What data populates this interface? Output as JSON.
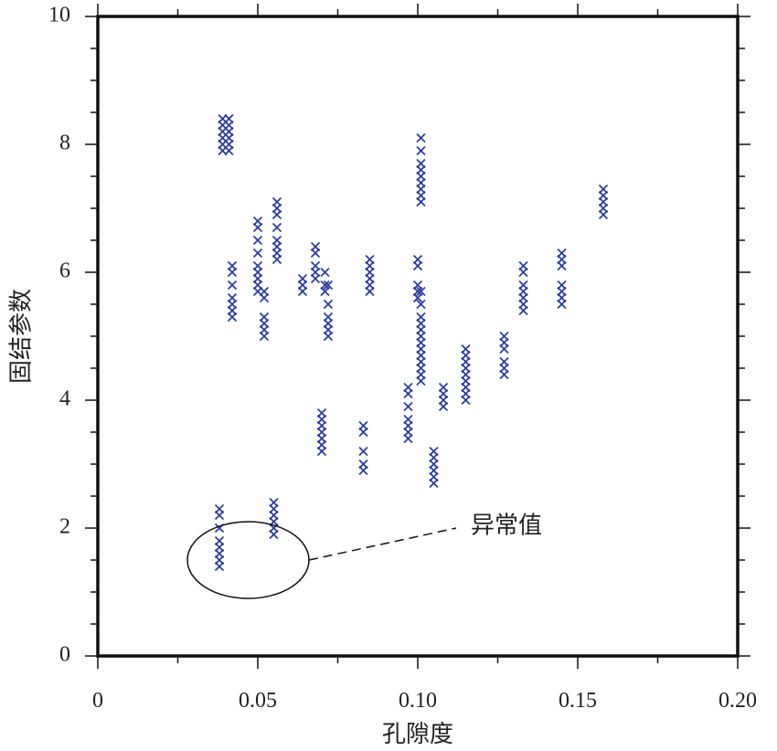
{
  "chart_data": {
    "type": "scatter",
    "title": "",
    "xlabel": "孔隙度",
    "ylabel": "固结参数",
    "xlim": [
      0,
      0.2
    ],
    "ylim": [
      0,
      10
    ],
    "x_ticks": [
      0,
      0.05,
      0.1,
      0.15,
      0.2
    ],
    "x_tick_labels": [
      "0",
      "0.05",
      "0.10",
      "0.15",
      "0.20"
    ],
    "y_ticks": [
      0,
      2,
      4,
      6,
      8,
      10
    ],
    "y_tick_labels": [
      "0",
      "2",
      "4",
      "6",
      "8",
      "10"
    ],
    "grid": false,
    "marker": "x",
    "colors": {
      "marker": "#2b3e9e",
      "axes": "#111111"
    },
    "series": [
      {
        "points": [
          [
            0.038,
            2.3
          ],
          [
            0.038,
            2.2
          ],
          [
            0.038,
            2.0
          ],
          [
            0.038,
            1.8
          ],
          [
            0.038,
            1.7
          ],
          [
            0.038,
            1.6
          ],
          [
            0.038,
            1.5
          ],
          [
            0.038,
            1.4
          ],
          [
            0.055,
            2.4
          ],
          [
            0.055,
            2.3
          ],
          [
            0.055,
            2.2
          ],
          [
            0.055,
            2.1
          ],
          [
            0.055,
            2.0
          ],
          [
            0.055,
            1.9
          ],
          [
            0.039,
            8.4
          ],
          [
            0.039,
            8.3
          ],
          [
            0.039,
            8.2
          ],
          [
            0.039,
            8.1
          ],
          [
            0.039,
            8.0
          ],
          [
            0.039,
            7.9
          ],
          [
            0.041,
            8.4
          ],
          [
            0.041,
            8.3
          ],
          [
            0.041,
            8.2
          ],
          [
            0.041,
            8.1
          ],
          [
            0.041,
            8.0
          ],
          [
            0.041,
            7.9
          ],
          [
            0.042,
            6.1
          ],
          [
            0.042,
            6.0
          ],
          [
            0.042,
            5.8
          ],
          [
            0.042,
            5.6
          ],
          [
            0.042,
            5.5
          ],
          [
            0.042,
            5.4
          ],
          [
            0.042,
            5.3
          ],
          [
            0.05,
            6.8
          ],
          [
            0.05,
            6.7
          ],
          [
            0.05,
            6.5
          ],
          [
            0.05,
            6.3
          ],
          [
            0.05,
            6.1
          ],
          [
            0.05,
            6.0
          ],
          [
            0.05,
            5.9
          ],
          [
            0.05,
            5.8
          ],
          [
            0.05,
            5.7
          ],
          [
            0.052,
            5.7
          ],
          [
            0.052,
            5.6
          ],
          [
            0.052,
            5.3
          ],
          [
            0.052,
            5.2
          ],
          [
            0.052,
            5.1
          ],
          [
            0.052,
            5.0
          ],
          [
            0.056,
            7.1
          ],
          [
            0.056,
            7.0
          ],
          [
            0.056,
            6.9
          ],
          [
            0.056,
            6.7
          ],
          [
            0.056,
            6.5
          ],
          [
            0.056,
            6.4
          ],
          [
            0.056,
            6.3
          ],
          [
            0.056,
            6.2
          ],
          [
            0.064,
            5.9
          ],
          [
            0.064,
            5.8
          ],
          [
            0.064,
            5.7
          ],
          [
            0.068,
            6.4
          ],
          [
            0.068,
            6.3
          ],
          [
            0.068,
            6.1
          ],
          [
            0.068,
            6.0
          ],
          [
            0.068,
            5.9
          ],
          [
            0.071,
            6.0
          ],
          [
            0.071,
            5.8
          ],
          [
            0.071,
            5.7
          ],
          [
            0.072,
            5.8
          ],
          [
            0.072,
            5.5
          ],
          [
            0.072,
            5.3
          ],
          [
            0.072,
            5.2
          ],
          [
            0.072,
            5.1
          ],
          [
            0.072,
            5.0
          ],
          [
            0.07,
            3.8
          ],
          [
            0.07,
            3.7
          ],
          [
            0.07,
            3.6
          ],
          [
            0.07,
            3.5
          ],
          [
            0.07,
            3.4
          ],
          [
            0.07,
            3.3
          ],
          [
            0.07,
            3.2
          ],
          [
            0.083,
            3.6
          ],
          [
            0.083,
            3.5
          ],
          [
            0.083,
            3.2
          ],
          [
            0.083,
            3.0
          ],
          [
            0.083,
            2.9
          ],
          [
            0.085,
            6.2
          ],
          [
            0.085,
            6.1
          ],
          [
            0.085,
            6.0
          ],
          [
            0.085,
            5.9
          ],
          [
            0.085,
            5.8
          ],
          [
            0.085,
            5.7
          ],
          [
            0.097,
            4.2
          ],
          [
            0.097,
            4.1
          ],
          [
            0.097,
            3.9
          ],
          [
            0.097,
            3.7
          ],
          [
            0.097,
            3.6
          ],
          [
            0.097,
            3.5
          ],
          [
            0.097,
            3.4
          ],
          [
            0.1,
            6.2
          ],
          [
            0.1,
            6.1
          ],
          [
            0.1,
            5.8
          ],
          [
            0.1,
            5.7
          ],
          [
            0.1,
            5.6
          ],
          [
            0.101,
            8.1
          ],
          [
            0.101,
            7.9
          ],
          [
            0.101,
            7.7
          ],
          [
            0.101,
            7.6
          ],
          [
            0.101,
            7.5
          ],
          [
            0.101,
            7.4
          ],
          [
            0.101,
            7.3
          ],
          [
            0.101,
            7.2
          ],
          [
            0.101,
            7.1
          ],
          [
            0.101,
            5.7
          ],
          [
            0.101,
            5.5
          ],
          [
            0.101,
            5.3
          ],
          [
            0.101,
            5.2
          ],
          [
            0.101,
            5.1
          ],
          [
            0.101,
            5.0
          ],
          [
            0.101,
            4.9
          ],
          [
            0.101,
            4.8
          ],
          [
            0.101,
            4.7
          ],
          [
            0.101,
            4.6
          ],
          [
            0.101,
            4.5
          ],
          [
            0.101,
            4.4
          ],
          [
            0.101,
            4.3
          ],
          [
            0.105,
            3.2
          ],
          [
            0.105,
            3.1
          ],
          [
            0.105,
            3.0
          ],
          [
            0.105,
            2.9
          ],
          [
            0.105,
            2.8
          ],
          [
            0.105,
            2.7
          ],
          [
            0.108,
            4.2
          ],
          [
            0.108,
            4.1
          ],
          [
            0.108,
            4.0
          ],
          [
            0.108,
            3.9
          ],
          [
            0.115,
            4.8
          ],
          [
            0.115,
            4.7
          ],
          [
            0.115,
            4.6
          ],
          [
            0.115,
            4.5
          ],
          [
            0.115,
            4.4
          ],
          [
            0.115,
            4.3
          ],
          [
            0.115,
            4.2
          ],
          [
            0.115,
            4.1
          ],
          [
            0.115,
            4.0
          ],
          [
            0.127,
            5.0
          ],
          [
            0.127,
            4.9
          ],
          [
            0.127,
            4.8
          ],
          [
            0.127,
            4.6
          ],
          [
            0.127,
            4.5
          ],
          [
            0.127,
            4.4
          ],
          [
            0.133,
            6.1
          ],
          [
            0.133,
            6.0
          ],
          [
            0.133,
            5.8
          ],
          [
            0.133,
            5.7
          ],
          [
            0.133,
            5.6
          ],
          [
            0.133,
            5.5
          ],
          [
            0.133,
            5.4
          ],
          [
            0.145,
            6.3
          ],
          [
            0.145,
            6.2
          ],
          [
            0.145,
            6.1
          ],
          [
            0.145,
            5.8
          ],
          [
            0.145,
            5.7
          ],
          [
            0.145,
            5.6
          ],
          [
            0.145,
            5.5
          ],
          [
            0.158,
            7.3
          ],
          [
            0.158,
            7.2
          ],
          [
            0.158,
            7.1
          ],
          [
            0.158,
            7.0
          ],
          [
            0.158,
            6.9
          ]
        ]
      }
    ],
    "annotations": [
      {
        "text": "异常值",
        "ellipse_center": [
          0.047,
          1.5
        ],
        "ellipse_rx": 0.019,
        "ellipse_ry": 0.6,
        "leader_to": [
          0.112,
          2.0
        ]
      }
    ]
  }
}
